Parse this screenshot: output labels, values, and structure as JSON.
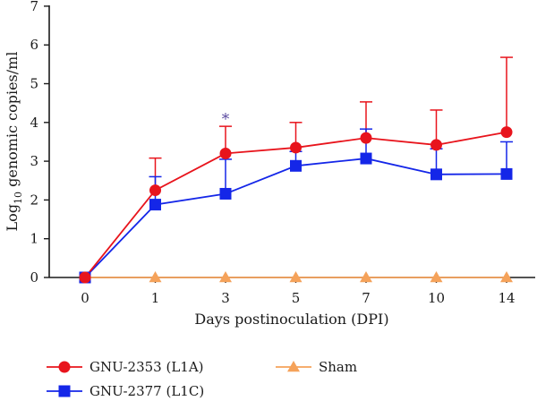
{
  "chart_data": {
    "type": "line",
    "title": "",
    "xlabel": "Days postinoculation (DPI)",
    "ylabel_prefix": "Log",
    "ylabel_sub": "10",
    "ylabel_suffix": " genomic copies/ml",
    "categories": [
      "0",
      "1",
      "3",
      "5",
      "7",
      "10",
      "14"
    ],
    "ylim": [
      0,
      7
    ],
    "yticks": [
      "0",
      "1",
      "2",
      "3",
      "4",
      "5",
      "6",
      "7"
    ],
    "grid": false,
    "legend_position": "bottom",
    "series": [
      {
        "name": "GNU-2353 (L1A)",
        "marker": "circle",
        "color": "#e8141c",
        "values": [
          0,
          2.25,
          3.2,
          3.35,
          3.6,
          3.42,
          3.75
        ],
        "error_upper": [
          0,
          3.08,
          3.9,
          4.0,
          4.53,
          4.32,
          5.68
        ]
      },
      {
        "name": "GNU-2377 (L1C)",
        "marker": "square",
        "color": "#1426e8",
        "values": [
          0,
          1.88,
          2.16,
          2.88,
          3.07,
          2.66,
          2.67
        ],
        "error_upper": [
          0,
          2.6,
          3.05,
          3.25,
          3.83,
          3.32,
          3.5
        ]
      },
      {
        "name": "Sham",
        "marker": "triangle",
        "color": "#f5a25a",
        "values": [
          0,
          0,
          0,
          0,
          0,
          0,
          0
        ],
        "error_upper": [
          0,
          0,
          0,
          0,
          0,
          0,
          0
        ]
      }
    ],
    "annotations": [
      {
        "text": "*",
        "category": "3",
        "y": 4.15,
        "color": "#5a4aa0"
      }
    ]
  }
}
